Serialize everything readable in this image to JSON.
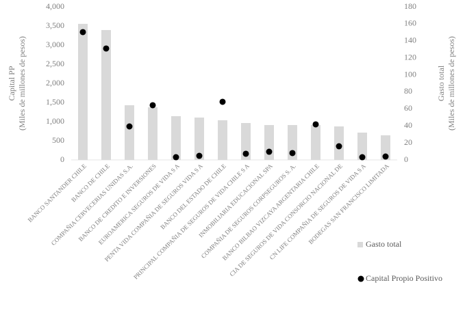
{
  "chart_data": {
    "type": "bar_dot",
    "ylabel": [
      "Capital PP",
      "(Miles de millones de pesos)"
    ],
    "y2label": [
      "Gasto total",
      "(Miles de millones de pesos)"
    ],
    "categories": [
      "BANCO SANTANDER CHILE",
      "BANCO DE CHILE",
      "COMPAÑIA CERVECERIAS UNIDAS S.A.",
      "BANCO DE CREDITO E INVERSIONES",
      "EUROAMERICA SEGUROS DE VIDA S A",
      "PENTA VIDA COMPAÑIA DE SEGUROS VIDA S A",
      "BANCO DEL ESTADO DE CHILE",
      "PRINCIPAL COMPAÑIA DE SEGUROS DE VIDA CHILE S A",
      "INMOBILIARIA EDUCACIONAL SPA",
      "COMPAÑIA DE SEGUROS CORPSEGUROS S. A.",
      "BANCO BILBAO VIZCAYA ARGENTARIA CHILE",
      "CIA DE SEGUROS DE VIDA CONSORCIO NACIONAL DE",
      "CN LIFE COMPAÑIA DE SEGUROS DE VIDA S A",
      "BODEGAS SAN FRANCISCO LIMITADA"
    ],
    "series": [
      {
        "name": "Gasto total",
        "color": "#d9d9d9",
        "mark": "bar",
        "axis": "y2",
        "values": [
          160,
          152.7,
          64.3,
          61.9,
          51.4,
          49.8,
          46.6,
          43.4,
          41,
          41,
          41,
          39.4,
          32.1,
          28.9
        ]
      },
      {
        "name": "Capital Propio Positivo",
        "color": "#000000",
        "mark": "dot",
        "axis": "y",
        "values": [
          3340,
          2911,
          875,
          1429,
          71,
          107,
          1518,
          161,
          214,
          179,
          929,
          357,
          71,
          89
        ]
      }
    ],
    "ylim": [
      0,
      4000
    ],
    "yticks": [
      0,
      500,
      {
        "value": 1000,
        "label": "1,000"
      },
      {
        "value": 1500,
        "label": "1,500"
      },
      {
        "value": 2000,
        "label": "2,000"
      },
      {
        "value": 2500,
        "label": "2,500"
      },
      {
        "value": 3000,
        "label": "3,000"
      },
      {
        "value": 3500,
        "label": "3,500"
      },
      {
        "value": 4000,
        "label": "4,000"
      }
    ],
    "y2lim": [
      0,
      180
    ],
    "y2ticks": [
      0,
      20,
      40,
      60,
      80,
      100,
      120,
      140,
      160,
      180
    ],
    "grid": false
  }
}
